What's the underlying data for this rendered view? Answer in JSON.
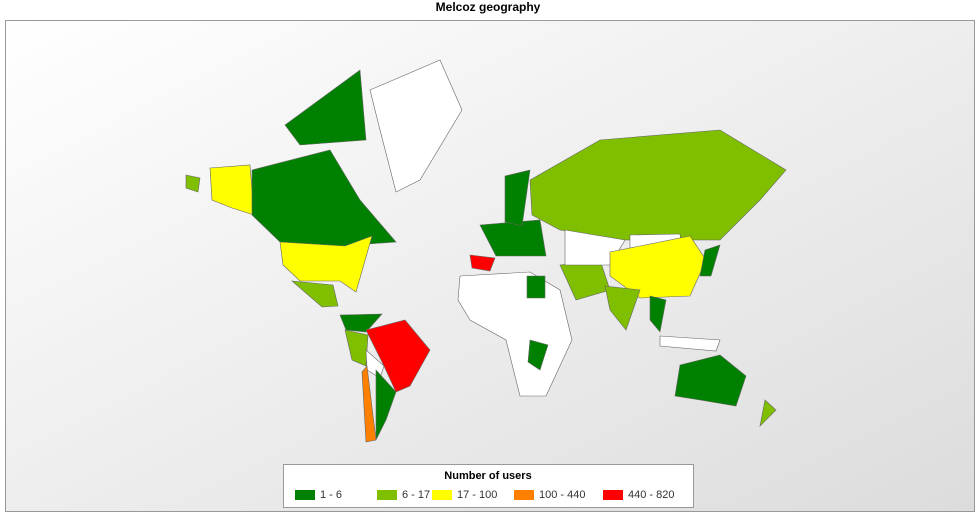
{
  "title": "Melcoz geography",
  "legend": {
    "title": "Number of users",
    "items": [
      {
        "label": "1 - 6",
        "color": "#008000"
      },
      {
        "label": "6 - 17",
        "color": "#7fbf00"
      },
      {
        "label": "17 - 100",
        "color": "#ffff00"
      },
      {
        "label": "100 - 440",
        "color": "#ff8000"
      },
      {
        "label": "440 - 820",
        "color": "#ff0000"
      }
    ]
  }
}
